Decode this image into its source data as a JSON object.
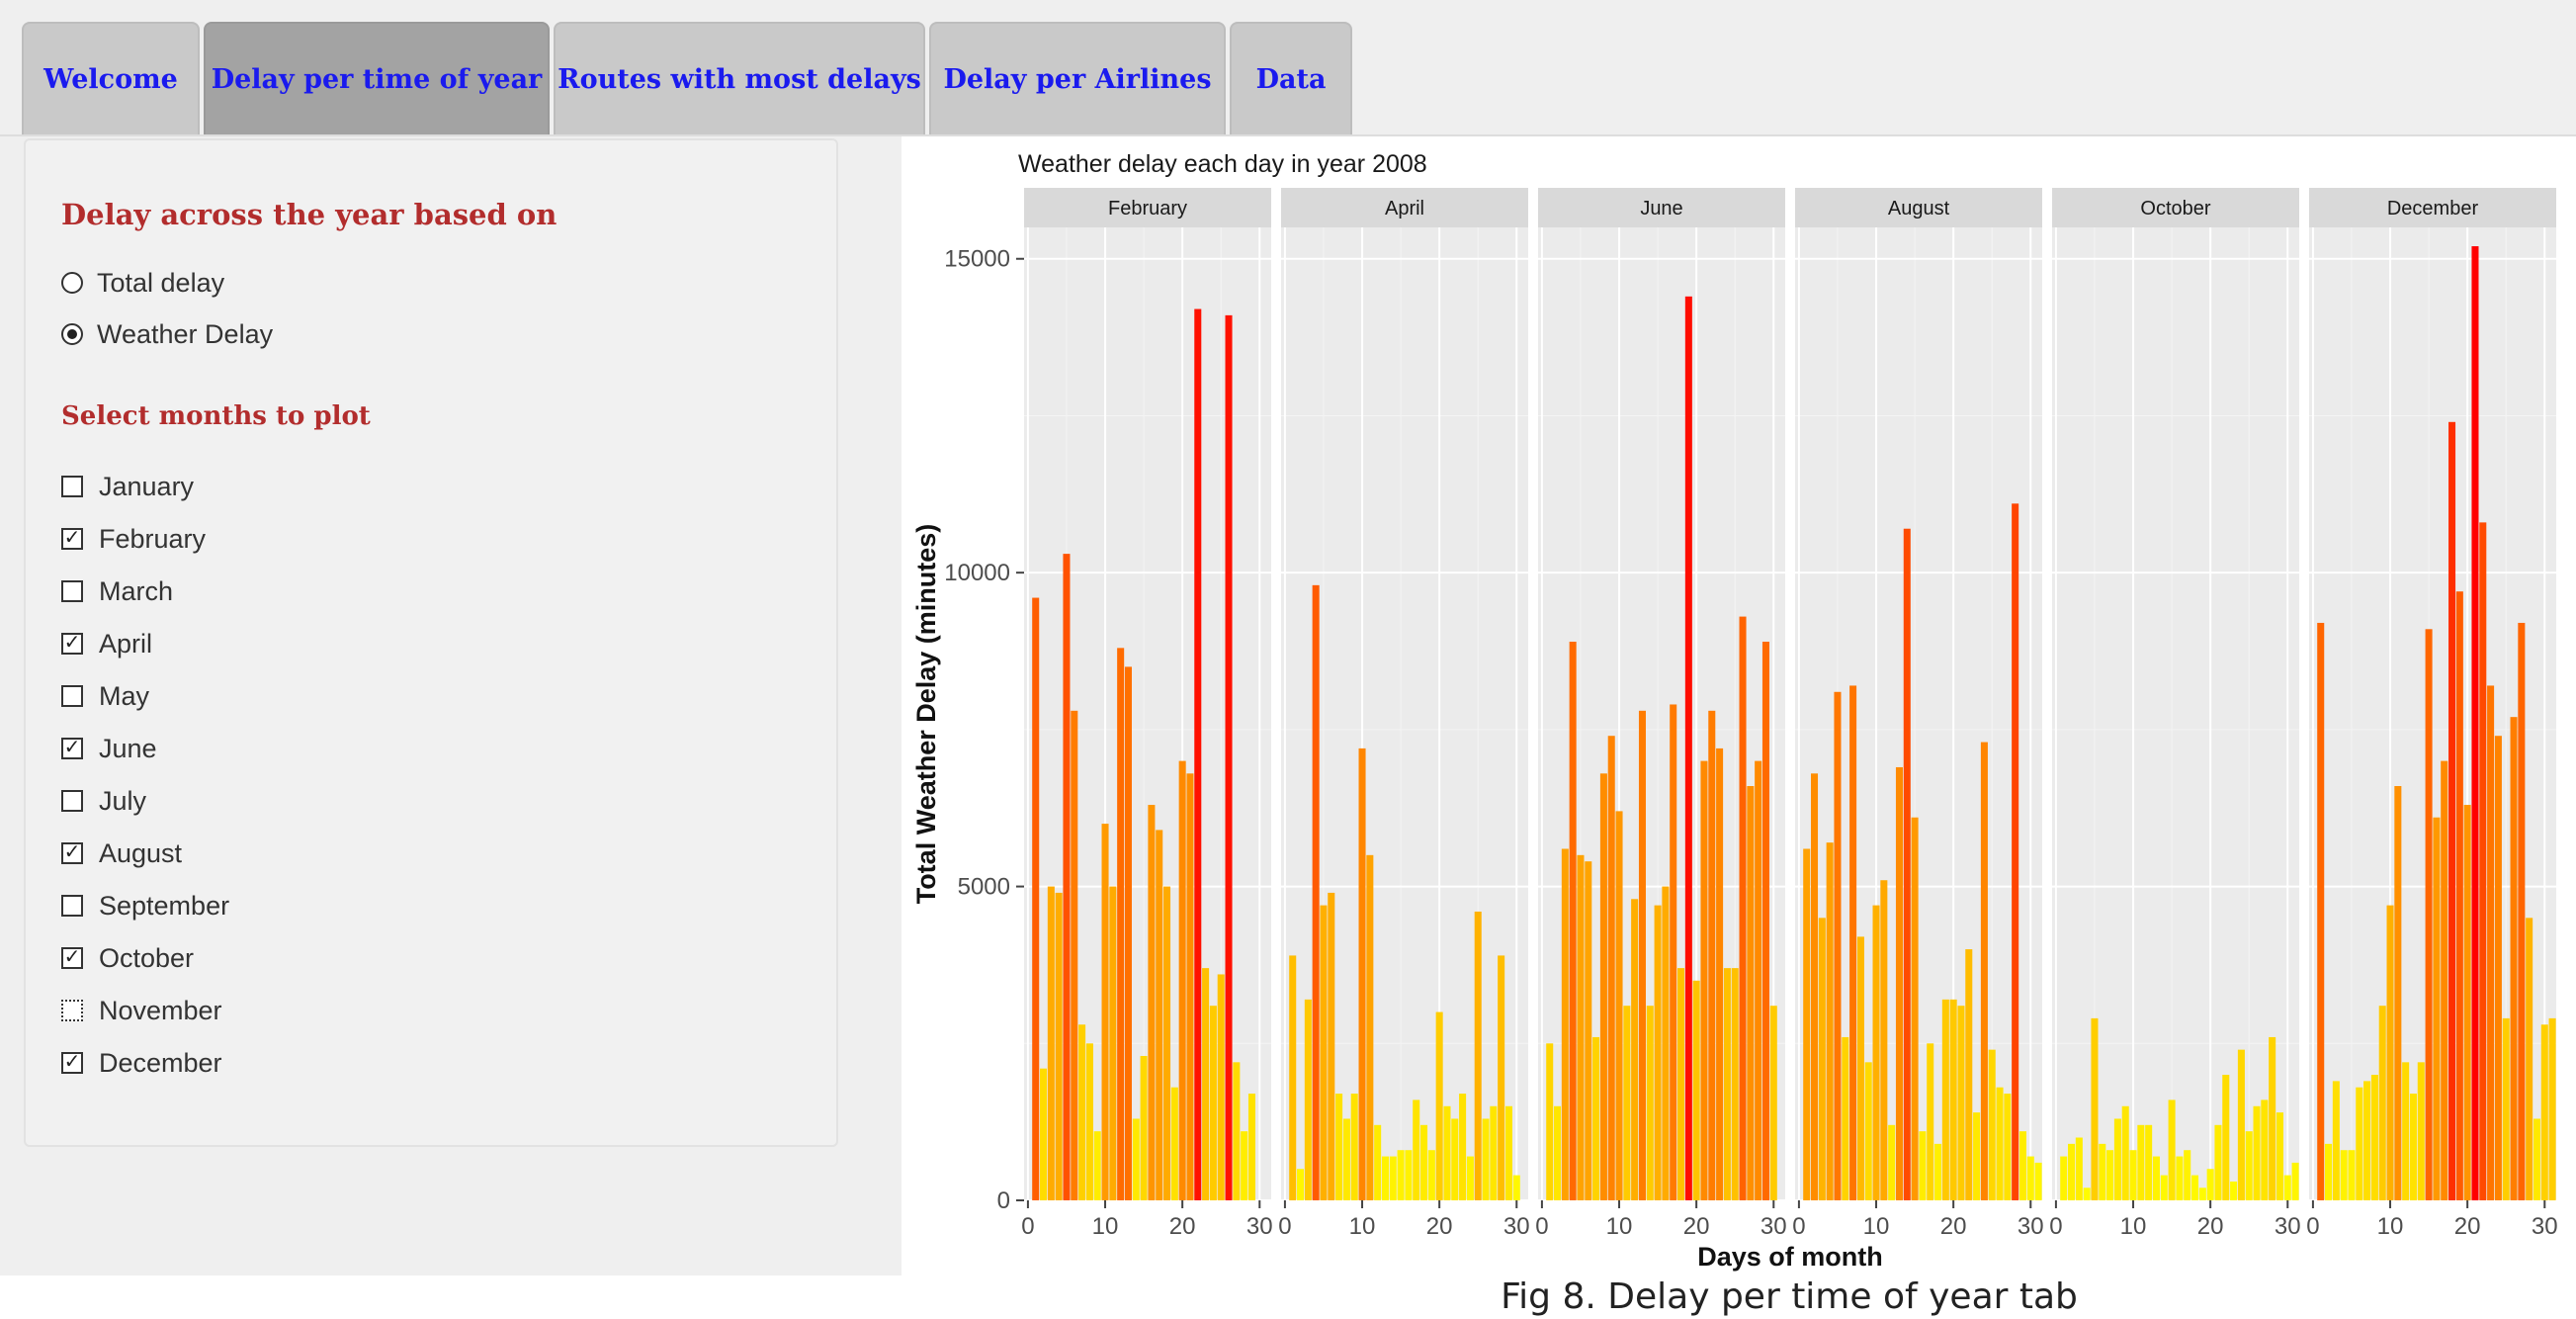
{
  "tabs": [
    {
      "label": "Welcome",
      "active": false
    },
    {
      "label": "Delay per time of year",
      "active": true
    },
    {
      "label": "Routes with most delays",
      "active": false
    },
    {
      "label": "Delay per Airlines",
      "active": false
    },
    {
      "label": "Data",
      "active": false
    }
  ],
  "sidebar": {
    "delay_title": "Delay across the year based on",
    "radio_options": [
      {
        "label": "Total delay",
        "selected": false
      },
      {
        "label": "Weather Delay",
        "selected": true
      }
    ],
    "months_title": "Select months to plot",
    "months": [
      {
        "label": "January",
        "checked": false
      },
      {
        "label": "February",
        "checked": true
      },
      {
        "label": "March",
        "checked": false
      },
      {
        "label": "April",
        "checked": true
      },
      {
        "label": "May",
        "checked": false
      },
      {
        "label": "June",
        "checked": true
      },
      {
        "label": "July",
        "checked": false
      },
      {
        "label": "August",
        "checked": true
      },
      {
        "label": "September",
        "checked": false
      },
      {
        "label": "October",
        "checked": true
      },
      {
        "label": "November",
        "checked": false
      },
      {
        "label": "December",
        "checked": true
      }
    ]
  },
  "colors": {
    "tab_text": "#1a1aee",
    "section_title": "#b22d2d",
    "panel_bg": "#ebebeb",
    "strip_bg": "#d9d9d9",
    "bar_low": "#ffff00",
    "bar_high": "#ff0000"
  },
  "chart_data": {
    "type": "bar",
    "title": "Weather delay each day in year 2008",
    "xlabel": "Days of month",
    "ylabel": "Total Weather Delay (minutes)",
    "ylim": [
      0,
      15500
    ],
    "xlim": [
      -0.5,
      31.5
    ],
    "x_ticks": [
      0,
      10,
      20,
      30
    ],
    "y_ticks": [
      0,
      5000,
      10000,
      15000
    ],
    "grid": true,
    "facets": [
      {
        "name": "February",
        "days": [
          1,
          2,
          3,
          4,
          5,
          6,
          7,
          8,
          9,
          10,
          11,
          12,
          13,
          14,
          15,
          16,
          17,
          18,
          19,
          20,
          21,
          22,
          23,
          24,
          25,
          26,
          27,
          28,
          29
        ],
        "values": [
          9600,
          2100,
          5000,
          4900,
          10300,
          7800,
          2800,
          2500,
          1100,
          6000,
          5000,
          8800,
          8500,
          1300,
          2300,
          6300,
          5900,
          5000,
          1800,
          7000,
          6800,
          14200,
          3700,
          3100,
          3600,
          14100,
          2200,
          1100,
          1700
        ]
      },
      {
        "name": "April",
        "days": [
          1,
          2,
          3,
          4,
          5,
          6,
          7,
          8,
          9,
          10,
          11,
          12,
          13,
          14,
          15,
          16,
          17,
          18,
          19,
          20,
          21,
          22,
          23,
          24,
          25,
          26,
          27,
          28,
          29,
          30
        ],
        "values": [
          3900,
          500,
          3200,
          9800,
          4700,
          4900,
          1700,
          1300,
          1700,
          7200,
          5500,
          1200,
          700,
          700,
          800,
          800,
          1600,
          1200,
          800,
          3000,
          1500,
          1300,
          1700,
          700,
          4600,
          1300,
          1500,
          3900,
          1500,
          400
        ]
      },
      {
        "name": "June",
        "days": [
          1,
          2,
          3,
          4,
          5,
          6,
          7,
          8,
          9,
          10,
          11,
          12,
          13,
          14,
          15,
          16,
          17,
          18,
          19,
          20,
          21,
          22,
          23,
          24,
          25,
          26,
          27,
          28,
          29,
          30
        ],
        "values": [
          2500,
          1500,
          5600,
          8900,
          5500,
          5400,
          2600,
          6800,
          7400,
          6200,
          3100,
          4800,
          7800,
          3100,
          4700,
          5000,
          7900,
          3700,
          14400,
          3500,
          7000,
          7800,
          7200,
          3700,
          3700,
          9300,
          6600,
          7000,
          8900,
          3100
        ]
      },
      {
        "name": "August",
        "days": [
          1,
          2,
          3,
          4,
          5,
          6,
          7,
          8,
          9,
          10,
          11,
          12,
          13,
          14,
          15,
          16,
          17,
          18,
          19,
          20,
          21,
          22,
          23,
          24,
          25,
          26,
          27,
          28,
          29,
          30,
          31
        ],
        "values": [
          5600,
          6800,
          4500,
          5700,
          8100,
          2600,
          8200,
          4200,
          2200,
          4700,
          5100,
          1200,
          6900,
          10700,
          6100,
          1100,
          2500,
          900,
          3200,
          3200,
          3100,
          4000,
          1400,
          7300,
          2400,
          1800,
          1700,
          11100,
          1100,
          700,
          600
        ]
      },
      {
        "name": "October",
        "days": [
          1,
          2,
          3,
          4,
          5,
          6,
          7,
          8,
          9,
          10,
          11,
          12,
          13,
          14,
          15,
          16,
          17,
          18,
          19,
          20,
          21,
          22,
          23,
          24,
          25,
          26,
          27,
          28,
          29,
          30,
          31
        ],
        "values": [
          700,
          900,
          1000,
          200,
          2900,
          900,
          800,
          1300,
          1500,
          800,
          1200,
          1200,
          700,
          400,
          1600,
          700,
          800,
          400,
          200,
          500,
          1200,
          2000,
          300,
          2400,
          1100,
          1500,
          1600,
          2600,
          1400,
          400,
          600
        ]
      },
      {
        "name": "December",
        "days": [
          1,
          2,
          3,
          4,
          5,
          6,
          7,
          8,
          9,
          10,
          11,
          12,
          13,
          14,
          15,
          16,
          17,
          18,
          19,
          20,
          21,
          22,
          23,
          24,
          25,
          26,
          27,
          28,
          29,
          30,
          31
        ],
        "values": [
          9200,
          900,
          1900,
          800,
          800,
          1800,
          1900,
          2000,
          3100,
          4700,
          6600,
          2200,
          1700,
          2200,
          9100,
          6100,
          7000,
          12400,
          9700,
          6300,
          15200,
          10800,
          8200,
          7400,
          2900,
          7700,
          9200,
          4500,
          1300,
          2800,
          2900
        ]
      }
    ]
  },
  "caption": "Fig 8. Delay per time of year tab"
}
